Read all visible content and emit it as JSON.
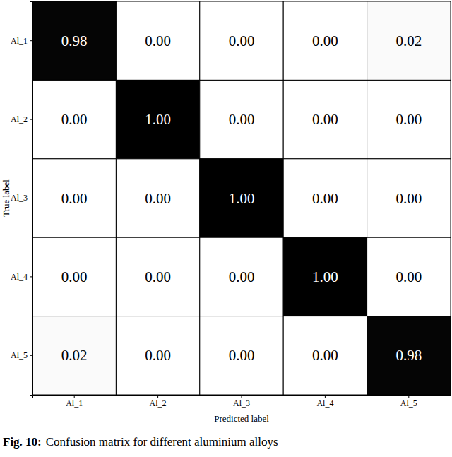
{
  "chart_data": {
    "type": "heatmap",
    "caption_label": "Fig. 10:",
    "caption": "Confusion matrix for different aluminium alloys",
    "x_label": "Predicted label",
    "y_label": "True label",
    "x_categories": [
      "Al_1",
      "Al_2",
      "Al_3",
      "Al_4",
      "Al_5"
    ],
    "y_categories": [
      "Al_1",
      "Al_2",
      "Al_3",
      "Al_4",
      "Al_5"
    ],
    "values": [
      [
        0.98,
        0,
        0,
        0,
        0.02
      ],
      [
        0,
        1,
        0,
        0,
        0
      ],
      [
        0,
        0,
        1,
        0,
        0
      ],
      [
        0,
        0,
        0,
        1,
        0
      ],
      [
        0.02,
        0,
        0,
        0,
        0.98
      ]
    ],
    "value_labels": [
      [
        "0.98",
        "0.00",
        "0.00",
        "0.00",
        "0.02"
      ],
      [
        "0.00",
        "1.00",
        "0.00",
        "0.00",
        "0.00"
      ],
      [
        "0.00",
        "0.00",
        "1.00",
        "0.00",
        "0.00"
      ],
      [
        "0.00",
        "0.00",
        "0.00",
        "1.00",
        "0.00"
      ],
      [
        "0.02",
        "0.00",
        "0.00",
        "0.00",
        "0.98"
      ]
    ],
    "data_labels": true
  }
}
